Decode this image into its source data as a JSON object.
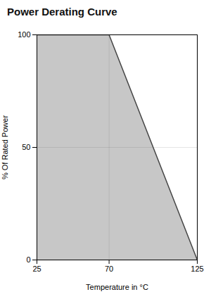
{
  "chart_data": {
    "type": "area",
    "title": "Power Derating Curve",
    "x": [
      25,
      70,
      125
    ],
    "values": [
      100,
      100,
      0
    ],
    "xlabel": "Temperature in °C",
    "ylabel": "% Of Rated Power",
    "xlim": [
      25,
      125
    ],
    "ylim": [
      0,
      100
    ],
    "xticks": [
      25,
      70,
      125
    ],
    "yticks": [
      0,
      50,
      100
    ],
    "grid": true,
    "color": "#444444"
  }
}
